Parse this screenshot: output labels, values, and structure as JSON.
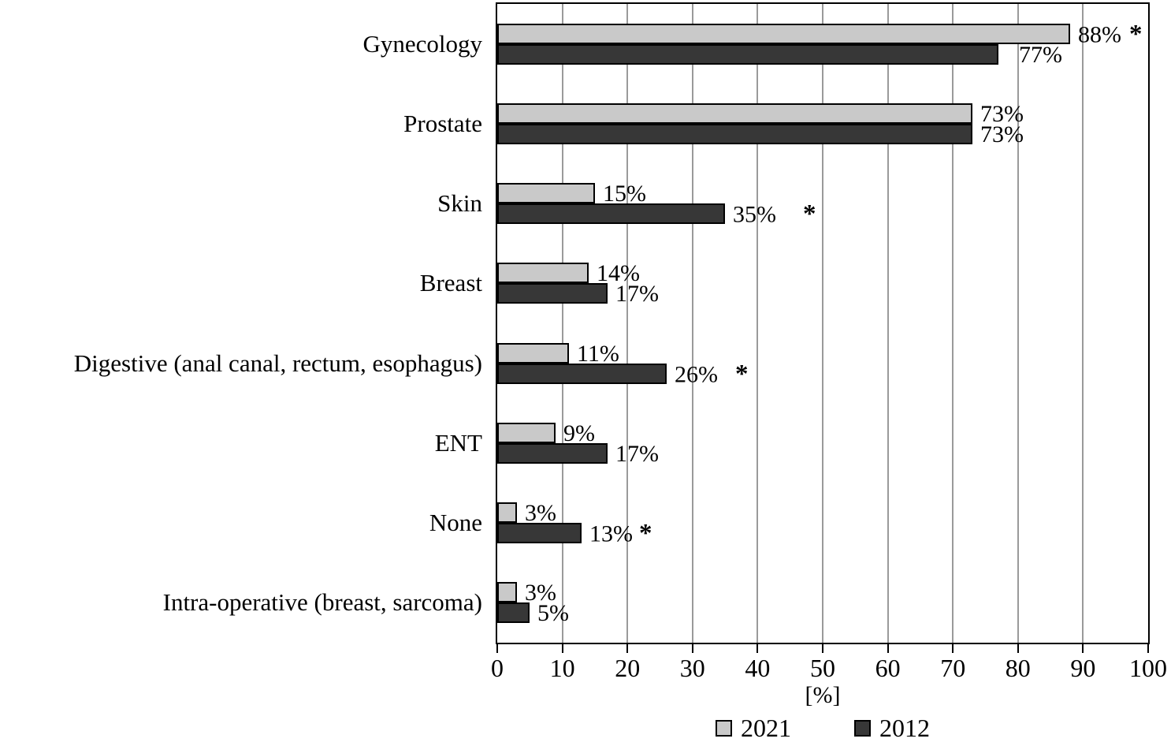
{
  "chart_data": {
    "type": "bar",
    "orientation": "horizontal",
    "title": "",
    "xlabel": "[%]",
    "ylabel": "",
    "xlim": [
      0,
      100
    ],
    "xticks": [
      0,
      10,
      20,
      30,
      40,
      50,
      60,
      70,
      80,
      90,
      100
    ],
    "grid": "vertical",
    "legend_position": "bottom",
    "significance_marker": "*",
    "categories": [
      "Gynecology",
      "Prostate",
      "Skin",
      "Breast",
      "Digestive (anal canal, rectum, esophagus)",
      "ENT",
      "None",
      "Intra-operative (breast, sarcoma)"
    ],
    "series": [
      {
        "name": "2021",
        "color": "#c9c9c9",
        "points": [
          {
            "value": 88,
            "label": "88%",
            "star": true,
            "starGap": 10
          },
          {
            "value": 73,
            "label": "73%"
          },
          {
            "value": 15,
            "label": "15%"
          },
          {
            "value": 14,
            "label": "14%"
          },
          {
            "value": 11,
            "label": "11%"
          },
          {
            "value": 9,
            "label": "9%"
          },
          {
            "value": 3,
            "label": "3%"
          },
          {
            "value": 3,
            "label": "3%"
          }
        ]
      },
      {
        "name": "2012",
        "color": "#373737",
        "points": [
          {
            "value": 77,
            "label": "77%",
            "gap": 26
          },
          {
            "value": 73,
            "label": "73%"
          },
          {
            "value": 35,
            "label": "35%",
            "star": true,
            "starGap": 34
          },
          {
            "value": 17,
            "label": "17%"
          },
          {
            "value": 26,
            "label": "26%",
            "star": true,
            "starGap": 22
          },
          {
            "value": 17,
            "label": "17%"
          },
          {
            "value": 13,
            "label": "13%",
            "star": true,
            "starGap": 8
          },
          {
            "value": 5,
            "label": "5%"
          }
        ]
      }
    ]
  },
  "legend": {
    "items": [
      {
        "label": "2021",
        "color": "#c9c9c9"
      },
      {
        "label": "2012",
        "color": "#373737"
      }
    ]
  },
  "colors": {
    "axis": "#000000",
    "gridline": "#9a9a9a",
    "background": "#ffffff",
    "bar_border": "#000000"
  }
}
